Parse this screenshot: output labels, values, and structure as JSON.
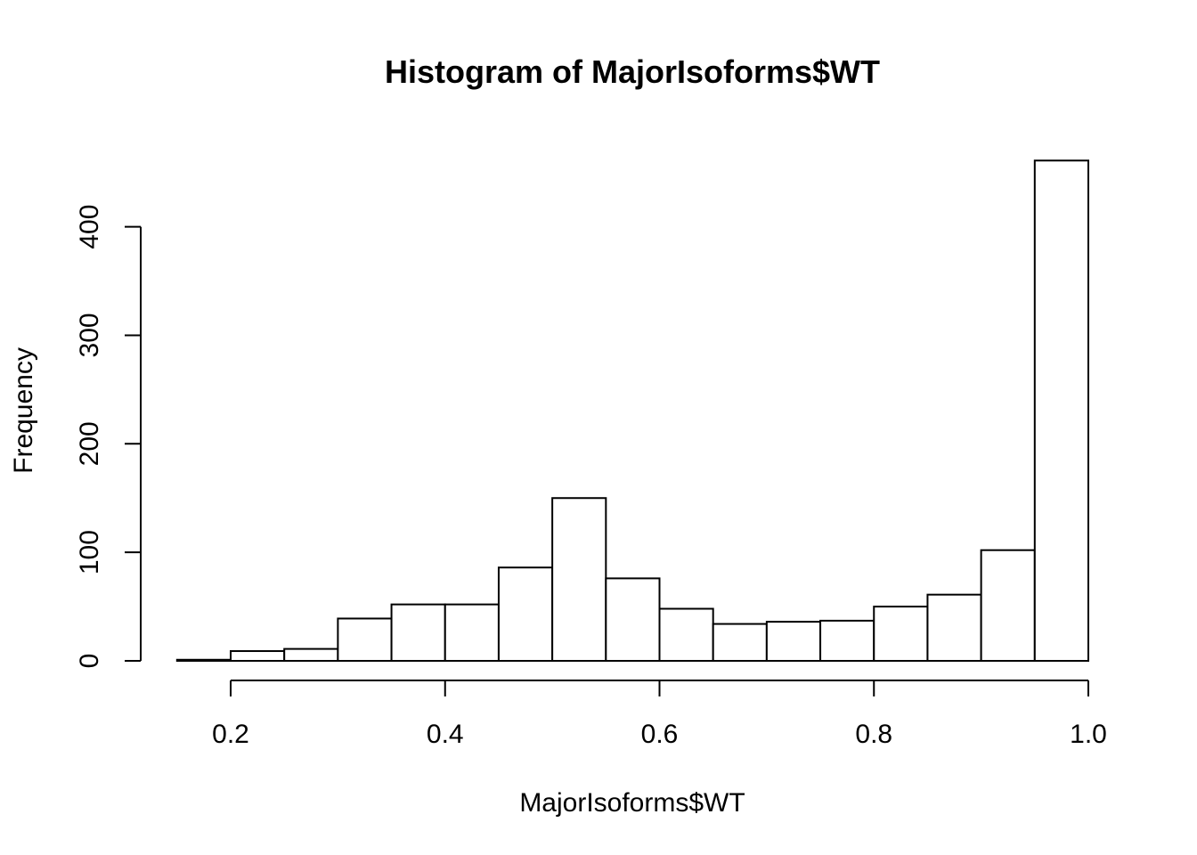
{
  "chart_data": {
    "type": "bar",
    "title": "Histogram of MajorIsoforms$WT",
    "xlabel": "MajorIsoforms$WT",
    "ylabel": "Frequency",
    "bins": [
      {
        "start": 0.15,
        "end": 0.2,
        "count": 1
      },
      {
        "start": 0.2,
        "end": 0.25,
        "count": 9
      },
      {
        "start": 0.25,
        "end": 0.3,
        "count": 11
      },
      {
        "start": 0.3,
        "end": 0.35,
        "count": 39
      },
      {
        "start": 0.35,
        "end": 0.4,
        "count": 52
      },
      {
        "start": 0.4,
        "end": 0.45,
        "count": 52
      },
      {
        "start": 0.45,
        "end": 0.5,
        "count": 86
      },
      {
        "start": 0.5,
        "end": 0.55,
        "count": 150
      },
      {
        "start": 0.55,
        "end": 0.6,
        "count": 76
      },
      {
        "start": 0.6,
        "end": 0.65,
        "count": 48
      },
      {
        "start": 0.65,
        "end": 0.7,
        "count": 34
      },
      {
        "start": 0.7,
        "end": 0.75,
        "count": 36
      },
      {
        "start": 0.75,
        "end": 0.8,
        "count": 37
      },
      {
        "start": 0.8,
        "end": 0.85,
        "count": 50
      },
      {
        "start": 0.85,
        "end": 0.9,
        "count": 61
      },
      {
        "start": 0.9,
        "end": 0.95,
        "count": 102
      },
      {
        "start": 0.95,
        "end": 1.0,
        "count": 461
      }
    ],
    "xticks": [
      {
        "value": 0.2,
        "label": "0.2"
      },
      {
        "value": 0.4,
        "label": "0.4"
      },
      {
        "value": 0.6,
        "label": "0.6"
      },
      {
        "value": 0.8,
        "label": "0.8"
      },
      {
        "value": 1.0,
        "label": "1.0"
      }
    ],
    "yticks": [
      {
        "value": 0,
        "label": "0"
      },
      {
        "value": 100,
        "label": "100"
      },
      {
        "value": 200,
        "label": "200"
      },
      {
        "value": 300,
        "label": "300"
      },
      {
        "value": 400,
        "label": "400"
      }
    ],
    "grid": false,
    "colors": {
      "bar_fill": "#ffffff",
      "bar_stroke": "#000000"
    }
  }
}
